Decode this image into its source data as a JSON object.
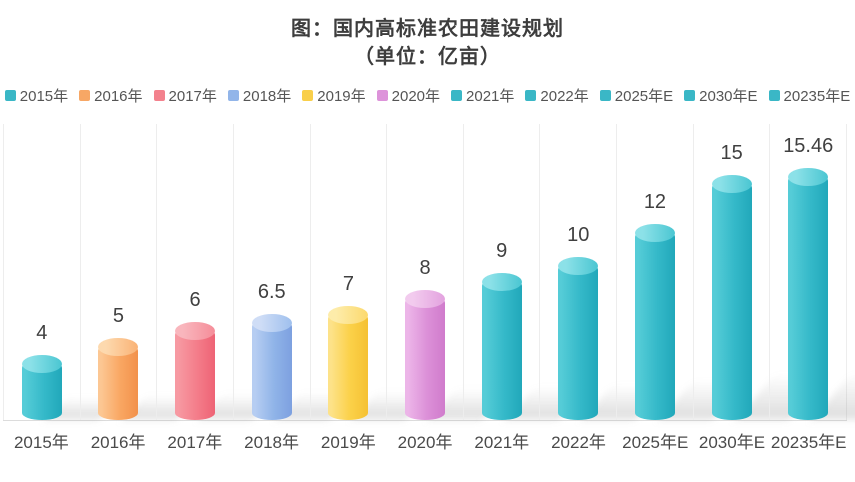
{
  "title": {
    "line1": "图：国内高标准农田建设规划",
    "line2": "（单位：亿亩）"
  },
  "legend": [
    {
      "label": "2015年",
      "color": "#3ab7c6"
    },
    {
      "label": "2016年",
      "color": "#f7a765"
    },
    {
      "label": "2017年",
      "color": "#f3818d"
    },
    {
      "label": "2018年",
      "color": "#92b5e9"
    },
    {
      "label": "2019年",
      "color": "#f9cf4a"
    },
    {
      "label": "2020年",
      "color": "#dd93da"
    },
    {
      "label": "2021年",
      "color": "#3ab7c6"
    },
    {
      "label": "2022年",
      "color": "#3ab7c6"
    },
    {
      "label": "2025年E",
      "color": "#3ab7c6"
    },
    {
      "label": "2030年E",
      "color": "#3ab7c6"
    },
    {
      "label": "20235年E",
      "color": "#3ab7c6"
    }
  ],
  "chart_data": {
    "type": "bar",
    "title": "图：国内高标准农田建设规划",
    "subtitle": "（单位：亿亩）",
    "unit": "亿亩",
    "categories": [
      "2015年",
      "2016年",
      "2017年",
      "2018年",
      "2019年",
      "2020年",
      "2021年",
      "2022年",
      "2025年E",
      "2030年E",
      "20235年E"
    ],
    "values": [
      4,
      5,
      6,
      6.5,
      7,
      8,
      9,
      10,
      12,
      15,
      15.46
    ],
    "value_labels": [
      "4",
      "5",
      "6",
      "6.5",
      "7",
      "8",
      "9",
      "10",
      "12",
      "15",
      "15.46"
    ],
    "xlabel": "",
    "ylabel": "",
    "ylim": [
      0,
      16
    ],
    "grid": "vertical-category-separators",
    "legend_position": "top",
    "bar_style": "3d-cylinder",
    "bar_colors": [
      {
        "grad": [
          "#55ccd7",
          "#35b9c9",
          "#21a8ba"
        ],
        "lid": [
          "#8ce1e8",
          "#4ac6d2"
        ]
      },
      {
        "grad": [
          "#fcc793",
          "#f9a763",
          "#f2914b"
        ],
        "lid": [
          "#fdd9ae",
          "#fab275"
        ]
      },
      {
        "grad": [
          "#f799a2",
          "#f47d8a",
          "#ee6375"
        ],
        "lid": [
          "#f9b6bd",
          "#f58d99"
        ]
      },
      {
        "grad": [
          "#b6cdf2",
          "#90b4e8",
          "#7da0e0"
        ],
        "lid": [
          "#cfddf6",
          "#9fc0ee"
        ]
      },
      {
        "grad": [
          "#fde289",
          "#fbd149",
          "#f5c133"
        ],
        "lid": [
          "#fdecaa",
          "#fcd96d"
        ]
      },
      {
        "grad": [
          "#ecb5e8",
          "#dc90d8",
          "#d07bcc"
        ],
        "lid": [
          "#f2cbee",
          "#e3a2df"
        ]
      },
      {
        "grad": [
          "#55ccd7",
          "#35b9c9",
          "#21a8ba"
        ],
        "lid": [
          "#8ce1e8",
          "#4ac6d2"
        ]
      },
      {
        "grad": [
          "#55ccd7",
          "#35b9c9",
          "#21a8ba"
        ],
        "lid": [
          "#8ce1e8",
          "#4ac6d2"
        ]
      },
      {
        "grad": [
          "#55ccd7",
          "#35b9c9",
          "#21a8ba"
        ],
        "lid": [
          "#8ce1e8",
          "#4ac6d2"
        ]
      },
      {
        "grad": [
          "#55ccd7",
          "#35b9c9",
          "#21a8ba"
        ],
        "lid": [
          "#8ce1e8",
          "#4ac6d2"
        ]
      },
      {
        "grad": [
          "#55ccd7",
          "#35b9c9",
          "#21a8ba"
        ],
        "lid": [
          "#8ce1e8",
          "#4ac6d2"
        ]
      }
    ]
  }
}
